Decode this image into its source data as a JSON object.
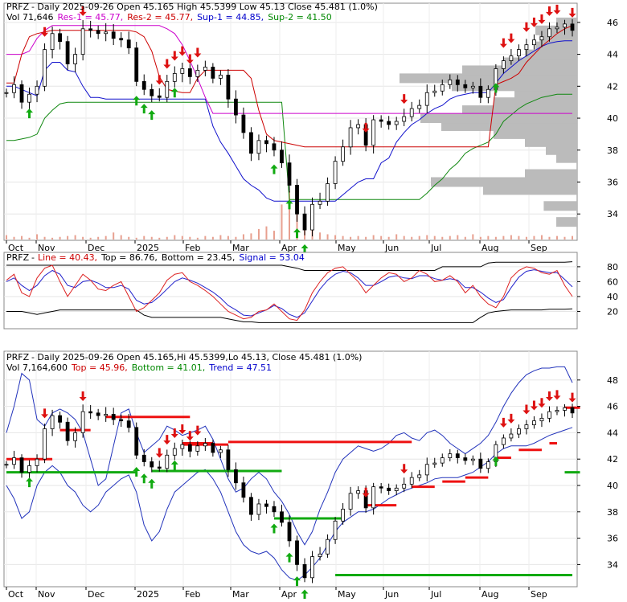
{
  "chart_data": [
    {
      "type": "candlestick",
      "panel": "price-volume",
      "header": {
        "ticker": "PRFZ",
        "line1_prefix": "- Daily 2025-09-26 Open 45.165  High 45.5399  Low 45.13  Close 45.481 (1.0%)",
        "vol": "Vol 71,646",
        "res1": "Res-1 = 45.77,",
        "res2": "Res-2 = 45.77,",
        "sup1": "Sup-1 = 44.85,",
        "sup2": "Sup-2 = 41.50"
      },
      "ylim": [
        32.5,
        47
      ],
      "y_ticks": [
        "34",
        "36",
        "38",
        "40",
        "42",
        "44",
        "46"
      ],
      "x_ticks": [
        "Oct",
        "Nov",
        "Dec",
        "2025",
        "Feb",
        "Mar",
        "Apr",
        "May",
        "Jun",
        "Jul",
        "Aug",
        "Sep"
      ],
      "closes": [
        41.6,
        42.1,
        41.0,
        41.5,
        42.0,
        44.3,
        45.3,
        44.8,
        43.4,
        44.0,
        45.6,
        45.5,
        45.3,
        45.4,
        45.0,
        44.9,
        44.4,
        42.3,
        41.8,
        41.4,
        41.3,
        42.3,
        42.8,
        43.1,
        42.6,
        43.0,
        43.2,
        42.5,
        42.7,
        41.2,
        40.2,
        39.1,
        37.8,
        38.6,
        38.4,
        38.0,
        37.2,
        35.8,
        34.0,
        33.0,
        34.6,
        34.8,
        35.9,
        37.3,
        38.2,
        39.4,
        39.6,
        38.3,
        39.9,
        39.8,
        39.6,
        39.8,
        40.1,
        40.6,
        40.8,
        41.6,
        41.7,
        42.1,
        42.4,
        42.1,
        41.9,
        42.0,
        41.3,
        41.8,
        43.1,
        43.6,
        43.9,
        44.3,
        44.6,
        44.9,
        45.1,
        45.6,
        45.7,
        45.9,
        45.5
      ],
      "volume": [
        5,
        3,
        4,
        2,
        6,
        3,
        2,
        3,
        4,
        5,
        3,
        2,
        3,
        4,
        8,
        5,
        3,
        2,
        4,
        3,
        2,
        3,
        5,
        4,
        3,
        2,
        4,
        3,
        5,
        4,
        3,
        6,
        7,
        12,
        15,
        10,
        40,
        55,
        48,
        20,
        12,
        8,
        6,
        5,
        4,
        3,
        4,
        3,
        5,
        4,
        3,
        6,
        4,
        3,
        4,
        5,
        4,
        3,
        4,
        5,
        3,
        6,
        3,
        4,
        3,
        4,
        5,
        4,
        3,
        4,
        5,
        3,
        4,
        3,
        4
      ],
      "resistance_line": [
        42.2,
        42.2,
        44.0,
        45.1,
        45.3,
        45.4,
        45.5,
        45.5,
        45.5,
        45.5,
        45.5,
        45.5,
        45.5,
        45.5,
        45.5,
        45.5,
        45.5,
        45.4,
        45.1,
        44.2,
        42.6,
        41.8,
        41.7,
        41.6,
        41.6,
        42.5,
        43.0,
        43.0,
        43.0,
        43.0,
        43.0,
        43.0,
        42.5,
        40.5,
        39.0,
        38.6,
        38.5,
        38.4,
        38.3,
        38.2,
        38.2,
        38.2,
        38.2,
        38.2,
        38.2,
        38.2,
        38.2,
        38.2,
        38.2,
        38.2,
        38.2,
        38.2,
        38.2,
        38.2,
        38.2,
        38.2,
        38.2,
        38.2,
        38.2,
        38.2,
        38.2,
        38.2,
        38.2,
        38.2,
        42.1,
        42.3,
        42.5,
        42.8,
        43.5,
        44.0,
        44.5,
        44.9,
        45.3,
        45.6,
        45.8
      ],
      "upper_band": [
        44.0,
        44.0,
        44.0,
        44.2,
        45.0,
        45.5,
        45.8,
        45.8,
        45.8,
        45.8,
        45.8,
        45.8,
        45.8,
        45.8,
        45.8,
        45.8,
        45.8,
        45.8,
        45.8,
        45.8,
        45.8,
        45.6,
        45.3,
        44.6,
        43.6,
        42.5,
        41.3,
        40.3,
        40.3,
        40.3,
        40.3,
        40.3,
        40.3,
        40.3,
        40.3,
        40.3,
        40.3,
        40.3,
        40.3,
        40.3,
        40.3,
        40.3,
        40.3,
        40.3,
        40.3,
        40.3,
        40.3,
        40.3,
        40.3,
        40.3,
        40.3,
        40.3,
        40.3,
        40.3,
        40.3,
        40.3,
        40.3,
        40.3,
        40.3,
        40.3,
        40.3,
        40.3,
        40.3,
        40.3,
        40.3,
        40.3,
        40.3,
        40.3,
        40.3,
        40.3,
        40.3,
        40.3,
        40.3,
        40.3,
        40.3
      ],
      "support1_line": [
        42.0,
        42.0,
        41.8,
        41.6,
        41.4,
        43.0,
        43.5,
        43.5,
        43.0,
        42.9,
        42.0,
        41.3,
        41.3,
        41.2,
        41.2,
        41.2,
        41.2,
        41.2,
        41.2,
        41.2,
        41.2,
        41.2,
        41.2,
        41.2,
        41.2,
        41.2,
        41.2,
        39.5,
        38.5,
        37.8,
        37.0,
        36.2,
        35.8,
        35.5,
        35.0,
        34.8,
        34.8,
        34.8,
        34.8,
        34.8,
        34.8,
        34.8,
        34.8,
        34.8,
        35.2,
        35.6,
        36.0,
        36.2,
        36.2,
        37.2,
        37.5,
        38.5,
        39.1,
        39.6,
        39.9,
        40.3,
        40.6,
        40.8,
        41.2,
        41.4,
        41.5,
        41.6,
        41.6,
        41.6,
        42.2,
        42.8,
        43.2,
        43.6,
        43.9,
        44.2,
        44.5,
        44.7,
        44.8,
        44.85,
        44.85
      ],
      "support2_line": [
        38.6,
        38.6,
        38.7,
        38.8,
        39.0,
        40.0,
        40.5,
        40.9,
        41.0,
        41.0,
        41.0,
        41.0,
        41.0,
        41.0,
        41.0,
        41.0,
        41.0,
        41.0,
        41.0,
        41.0,
        41.0,
        41.0,
        41.0,
        41.0,
        41.0,
        41.0,
        41.0,
        41.0,
        41.0,
        41.0,
        41.0,
        41.0,
        41.0,
        41.0,
        41.0,
        41.0,
        41.0,
        34.9,
        34.9,
        34.9,
        34.9,
        34.9,
        34.9,
        34.9,
        34.9,
        34.9,
        34.9,
        34.9,
        34.9,
        34.9,
        34.9,
        34.9,
        34.9,
        34.9,
        34.9,
        35.3,
        35.8,
        36.2,
        36.8,
        37.2,
        37.8,
        38.1,
        38.3,
        38.5,
        39.0,
        39.8,
        40.2,
        40.6,
        40.9,
        41.1,
        41.3,
        41.4,
        41.5,
        41.5,
        41.5
      ],
      "volume_profile": [
        {
          "price": 33.5,
          "w": 0.1
        },
        {
          "price": 34.5,
          "w": 0.16
        },
        {
          "price": 35.5,
          "w": 0.45
        },
        {
          "price": 36.0,
          "w": 0.7
        },
        {
          "price": 36.5,
          "w": 0.25
        },
        {
          "price": 37.5,
          "w": 0.1
        },
        {
          "price": 38.0,
          "w": 0.15
        },
        {
          "price": 38.5,
          "w": 0.25
        },
        {
          "price": 39.0,
          "w": 0.4
        },
        {
          "price": 39.5,
          "w": 0.65
        },
        {
          "price": 40.0,
          "w": 0.75
        },
        {
          "price": 40.5,
          "w": 0.55
        },
        {
          "price": 41.0,
          "w": 0.4
        },
        {
          "price": 41.5,
          "w": 0.3
        },
        {
          "price": 42.0,
          "w": 0.6
        },
        {
          "price": 42.5,
          "w": 0.85
        },
        {
          "price": 43.0,
          "w": 0.55
        },
        {
          "price": 43.5,
          "w": 0.35
        },
        {
          "price": 44.0,
          "w": 0.25
        },
        {
          "price": 44.5,
          "w": 0.2
        },
        {
          "price": 45.0,
          "w": 0.18
        },
        {
          "price": 45.5,
          "w": 0.2
        },
        {
          "price": 46.0,
          "w": 0.1
        }
      ],
      "down_arrows": [
        5,
        10,
        20,
        21,
        22,
        23,
        24,
        25,
        47,
        52,
        65,
        66,
        68,
        69,
        70,
        71,
        72,
        74
      ],
      "up_arrows": [
        3,
        17,
        18,
        19,
        22,
        35,
        37,
        38,
        39,
        64
      ]
    },
    {
      "type": "line",
      "panel": "oscillator",
      "header": {
        "ticker": "PRFZ",
        "line": "Line = 40.43,",
        "top": "Top = 86.76,",
        "bottom": "Bottom = 23.45,",
        "signal": "Signal = 53.04"
      },
      "ylim": [
        0,
        95
      ],
      "y_ticks": [
        "20",
        "40",
        "60",
        "80"
      ],
      "series": [
        {
          "values": [
            62,
            70,
            45,
            40,
            65,
            78,
            82,
            60,
            40,
            55,
            70,
            62,
            50,
            48,
            55,
            60,
            40,
            20,
            25,
            35,
            45,
            62,
            70,
            72,
            60,
            55,
            48,
            40,
            30,
            20,
            15,
            10,
            12,
            20,
            22,
            30,
            20,
            10,
            8,
            22,
            45,
            60,
            72,
            78,
            80,
            70,
            60,
            45,
            55,
            65,
            72,
            70,
            60,
            65,
            75,
            70,
            60,
            62,
            68,
            60,
            45,
            55,
            40,
            30,
            25,
            40,
            65,
            75,
            80,
            78,
            72,
            70,
            75,
            55,
            40
          ]
        },
        {
          "values": [
            60,
            65,
            55,
            48,
            55,
            68,
            75,
            70,
            55,
            52,
            60,
            62,
            58,
            52,
            52,
            55,
            50,
            35,
            30,
            32,
            40,
            50,
            60,
            65,
            62,
            58,
            52,
            46,
            38,
            28,
            22,
            15,
            14,
            18,
            22,
            28,
            24,
            16,
            12,
            18,
            34,
            50,
            62,
            70,
            74,
            72,
            65,
            55,
            55,
            60,
            66,
            68,
            65,
            64,
            68,
            68,
            64,
            62,
            64,
            62,
            52,
            52,
            46,
            38,
            32,
            36,
            52,
            66,
            74,
            76,
            74,
            72,
            72,
            63,
            53
          ]
        },
        {
          "values": [
            82,
            82,
            82,
            82,
            82,
            82,
            82,
            82,
            82,
            82,
            82,
            82,
            82,
            82,
            82,
            82,
            82,
            82,
            82,
            82,
            82,
            82,
            82,
            82,
            82,
            82,
            82,
            82,
            82,
            82,
            82,
            82,
            82,
            82,
            82,
            82,
            82,
            80,
            78,
            75,
            75,
            75,
            75,
            75,
            75,
            75,
            75,
            75,
            75,
            75,
            75,
            75,
            75,
            75,
            75,
            75,
            75,
            80,
            80,
            80,
            80,
            80,
            80,
            85,
            86,
            86,
            86,
            86,
            86,
            86,
            86,
            86,
            86,
            86,
            86.76
          ]
        },
        {
          "values": [
            20,
            20,
            20,
            18,
            16,
            18,
            20,
            22,
            22,
            22,
            22,
            22,
            22,
            22,
            22,
            22,
            22,
            22,
            15,
            12,
            12,
            12,
            12,
            12,
            12,
            12,
            12,
            12,
            12,
            10,
            8,
            6,
            6,
            5,
            5,
            5,
            5,
            5,
            5,
            5,
            5,
            5,
            5,
            5,
            5,
            5,
            5,
            5,
            5,
            5,
            5,
            5,
            5,
            5,
            5,
            5,
            5,
            5,
            5,
            5,
            5,
            5,
            12,
            18,
            20,
            21,
            22,
            22,
            22,
            22,
            22,
            23,
            23,
            23,
            23.45
          ]
        }
      ]
    },
    {
      "type": "candlestick",
      "panel": "trend",
      "header": {
        "ticker": "PRFZ",
        "line1_prefix": "- Daily 2025-09-26 Open 45.165,Hi 45.5399,Lo 45.13,  Close 45.481 (1.0%)",
        "vol": "Vol 7,164,600",
        "top": "Top = 45.96,",
        "bottom": "Bottom = 41.01,",
        "trend": "Trend = 47.51"
      },
      "ylim": [
        32.5,
        50
      ],
      "y_ticks": [
        "34",
        "36",
        "38",
        "40",
        "42",
        "44",
        "46",
        "48"
      ],
      "x_ticks": [
        "Oct",
        "Nov",
        "Dec",
        "2025",
        "Feb",
        "Mar",
        "Apr",
        "May",
        "Jun",
        "Jul",
        "Aug",
        "Sep"
      ],
      "closes": [
        41.6,
        42.1,
        41.0,
        41.5,
        42.0,
        44.3,
        45.3,
        44.8,
        43.4,
        44.0,
        45.6,
        45.5,
        45.3,
        45.4,
        45.0,
        44.9,
        44.4,
        42.3,
        41.8,
        41.4,
        41.3,
        42.3,
        42.8,
        43.1,
        42.6,
        43.0,
        43.2,
        42.5,
        42.7,
        41.2,
        40.2,
        39.1,
        37.8,
        38.6,
        38.4,
        38.0,
        37.2,
        35.8,
        34.0,
        33.0,
        34.6,
        34.8,
        35.9,
        37.3,
        38.2,
        39.4,
        39.6,
        38.3,
        39.9,
        39.8,
        39.6,
        39.8,
        40.1,
        40.6,
        40.8,
        41.6,
        41.7,
        42.1,
        42.4,
        42.1,
        41.9,
        42.0,
        41.3,
        41.8,
        43.1,
        43.6,
        43.9,
        44.3,
        44.6,
        44.9,
        45.1,
        45.6,
        45.7,
        45.9,
        45.5
      ],
      "band_upper": [
        44,
        46,
        48.5,
        48,
        45,
        44.5,
        45.5,
        45.8,
        45.5,
        45,
        44,
        42,
        40,
        40.5,
        43,
        45.5,
        45.8,
        44,
        42.5,
        43,
        43.5,
        44.5,
        44.2,
        43.8,
        44,
        44.2,
        44.5,
        43.5,
        42,
        40.5,
        39.5,
        39.8,
        40.5,
        41,
        40.5,
        39.5,
        38.8,
        37.8,
        36.5,
        35.5,
        36.5,
        38.2,
        39.5,
        41,
        42,
        42.5,
        43,
        42.8,
        42.6,
        42.8,
        43.2,
        43.8,
        44,
        43.6,
        43.4,
        44,
        44.2,
        43.8,
        43.2,
        42.8,
        42.4,
        42.8,
        43.2,
        43.8,
        44.8,
        46,
        47,
        47.8,
        48.4,
        48.7,
        48.9,
        48.9,
        49,
        49,
        47.8
      ],
      "band_lower": [
        40,
        39,
        37.5,
        38,
        40,
        41,
        41.5,
        41,
        40,
        39.5,
        38.5,
        38,
        38.5,
        39.5,
        40,
        40.5,
        40.8,
        39.5,
        37,
        35.8,
        36.5,
        38.2,
        39.5,
        40,
        40.5,
        41,
        41.2,
        40.5,
        39.5,
        38,
        36.5,
        35.5,
        35,
        34.8,
        35,
        34.5,
        33.6,
        33,
        32.8,
        33.2,
        33.8,
        34.5,
        35.5,
        36.5,
        37.2,
        37.6,
        38,
        38,
        38.2,
        38.6,
        39,
        39.3,
        39.6,
        39.8,
        40,
        40.2,
        40.5,
        40.6,
        40.6,
        40.6,
        40.8,
        41,
        41.4,
        41.8,
        42.4,
        42.8,
        43,
        43,
        43,
        43.2,
        43.5,
        43.8,
        44,
        44.2,
        44.4
      ],
      "resistance_segments": [
        {
          "x0": 0,
          "x1": 6,
          "y": 42.0
        },
        {
          "x0": 7,
          "x1": 11,
          "y": 44.2
        },
        {
          "x0": 13,
          "x1": 24,
          "y": 45.2
        },
        {
          "x0": 23,
          "x1": 27,
          "y": 43.2
        },
        {
          "x0": 23,
          "x1": 29,
          "y": 43.1
        },
        {
          "x0": 29,
          "x1": 53,
          "y": 43.3
        },
        {
          "x0": 47,
          "x1": 51,
          "y": 38.5
        },
        {
          "x0": 53,
          "x1": 56,
          "y": 39.9
        },
        {
          "x0": 57,
          "x1": 60,
          "y": 40.3
        },
        {
          "x0": 60,
          "x1": 63,
          "y": 40.6
        },
        {
          "x0": 64,
          "x1": 66,
          "y": 42.1
        },
        {
          "x0": 67,
          "x1": 70,
          "y": 42.7
        },
        {
          "x0": 71,
          "x1": 72,
          "y": 43.2
        },
        {
          "x0": 73,
          "x1": 75,
          "y": 45.9
        }
      ],
      "support_segments": [
        {
          "x0": 0,
          "x1": 17,
          "y": 41.0
        },
        {
          "x0": 19,
          "x1": 36,
          "y": 41.1
        },
        {
          "x0": 35,
          "x1": 44,
          "y": 37.5
        },
        {
          "x0": 43,
          "x1": 74,
          "y": 33.2
        },
        {
          "x0": 73,
          "x1": 75,
          "y": 41.0
        }
      ]
    }
  ]
}
